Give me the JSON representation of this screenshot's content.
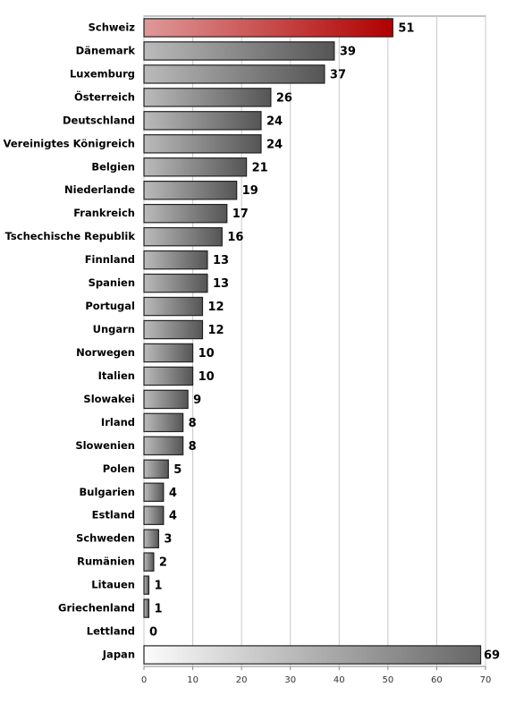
{
  "chart_data": {
    "type": "barh",
    "categories": [
      "Schweiz",
      "Dänemark",
      "Luxemburg",
      "Österreich",
      "Deutschland",
      "Vereinigtes Königreich",
      "Belgien",
      "Niederlande",
      "Frankreich",
      "Tschechische Republik",
      "Finnland",
      "Spanien",
      "Portugal",
      "Ungarn",
      "Norwegen",
      "Italien",
      "Slowakei",
      "Irland",
      "Slowenien",
      "Polen",
      "Bulgarien",
      "Estland",
      "Schweden",
      "Rumänien",
      "Litauen",
      "Griechenland",
      "Lettland",
      "Japan"
    ],
    "values": [
      51,
      39,
      37,
      26,
      24,
      24,
      21,
      19,
      17,
      16,
      13,
      13,
      12,
      12,
      10,
      10,
      9,
      8,
      8,
      5,
      4,
      4,
      3,
      2,
      1,
      1,
      0,
      69
    ],
    "colors": [
      "#b00000",
      "#555555",
      "#555555",
      "#555555",
      "#555555",
      "#555555",
      "#555555",
      "#555555",
      "#555555",
      "#555555",
      "#555555",
      "#555555",
      "#555555",
      "#555555",
      "#555555",
      "#555555",
      "#555555",
      "#555555",
      "#555555",
      "#555555",
      "#555555",
      "#555555",
      "#555555",
      "#555555",
      "#555555",
      "#555555",
      "#555555",
      "#666666"
    ],
    "xlim": [
      0,
      70
    ],
    "xticks": [
      0,
      10,
      20,
      30,
      40,
      50,
      60,
      70
    ],
    "grid": true
  }
}
